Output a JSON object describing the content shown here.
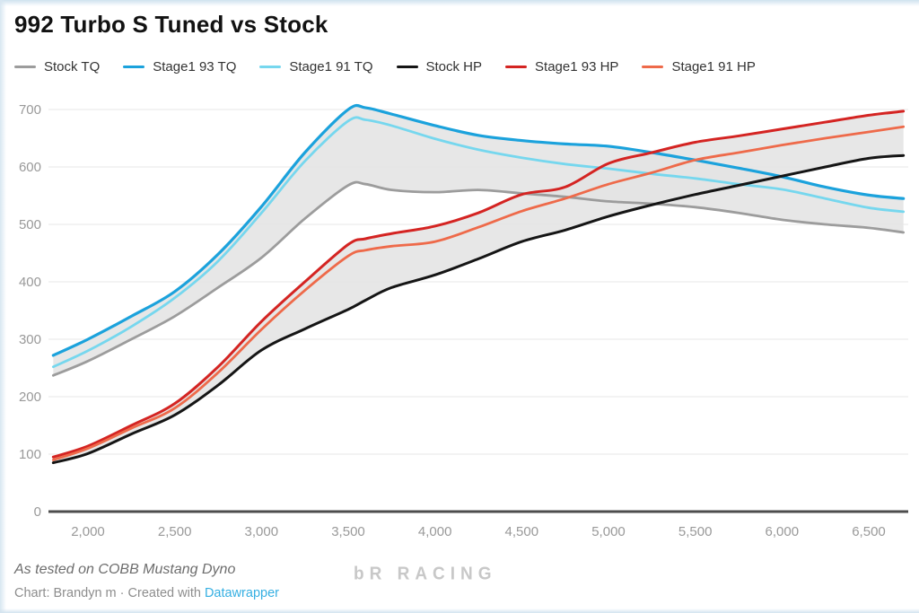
{
  "page": {
    "title": "992 Turbo S Tuned vs Stock"
  },
  "footer": {
    "note": "As tested on COBB Mustang Dyno",
    "byline_prefix": "Chart: Brandyn m · Created with ",
    "byline_link": "Datawrapper",
    "watermark": "bR RACING"
  },
  "chart_data": {
    "type": "line",
    "title": "992 Turbo S Tuned vs Stock",
    "xlabel": "",
    "ylabel": "",
    "xlim": [
      1800,
      6700
    ],
    "ylim": [
      0,
      700
    ],
    "grid": "horizontal",
    "legend_position": "top",
    "y_ticks": [
      0,
      100,
      200,
      300,
      400,
      500,
      600,
      700
    ],
    "x_ticks": [
      2000,
      2500,
      3000,
      3500,
      4000,
      4500,
      5000,
      5500,
      6000,
      6500
    ],
    "x_tick_labels": [
      "2,000",
      "2,500",
      "3,000",
      "3,500",
      "4,000",
      "4,500",
      "5,000",
      "5,500",
      "6,000",
      "6,500"
    ],
    "x": [
      1800,
      2000,
      2250,
      2500,
      2750,
      3000,
      3250,
      3500,
      3600,
      3750,
      4000,
      4250,
      4500,
      4750,
      5000,
      5250,
      5500,
      5750,
      6000,
      6250,
      6500,
      6700
    ],
    "series": [
      {
        "name": "Stock TQ",
        "color": "#9c9c9c",
        "width": 2.8,
        "values": [
          237,
          262,
          300,
          340,
          390,
          442,
          510,
          568,
          570,
          560,
          556,
          560,
          554,
          548,
          540,
          536,
          530,
          520,
          508,
          500,
          494,
          486
        ]
      },
      {
        "name": "Stage1 93 TQ",
        "color": "#1ba2dc",
        "width": 3.2,
        "values": [
          272,
          300,
          340,
          383,
          448,
          531,
          625,
          700,
          703,
          692,
          672,
          655,
          646,
          640,
          636,
          625,
          612,
          598,
          583,
          565,
          551,
          545
        ]
      },
      {
        "name": "Stage1 91 TQ",
        "color": "#76d7ee",
        "width": 2.8,
        "values": [
          252,
          280,
          322,
          372,
          436,
          520,
          610,
          680,
          682,
          672,
          649,
          630,
          616,
          605,
          597,
          588,
          580,
          570,
          561,
          545,
          529,
          522
        ]
      },
      {
        "name": "Stock HP",
        "color": "#151515",
        "width": 3.0,
        "values": [
          85,
          101,
          135,
          168,
          220,
          281,
          318,
          352,
          368,
          390,
          412,
          440,
          470,
          490,
          514,
          534,
          552,
          568,
          584,
          600,
          615,
          620
        ]
      },
      {
        "name": "Stage1 93 HP",
        "color": "#d42422",
        "width": 3.0,
        "values": [
          95,
          114,
          150,
          188,
          252,
          331,
          400,
          465,
          475,
          484,
          497,
          520,
          552,
          565,
          606,
          625,
          643,
          654,
          666,
          678,
          690,
          697
        ]
      },
      {
        "name": "Stage1 91 HP",
        "color": "#ee6a4a",
        "width": 2.8,
        "values": [
          90,
          110,
          145,
          180,
          242,
          317,
          385,
          445,
          455,
          462,
          470,
          495,
          523,
          545,
          570,
          590,
          612,
          625,
          638,
          650,
          661,
          670
        ]
      }
    ],
    "bands": [
      {
        "upper": "Stage1 93 TQ",
        "lower": "Stock TQ",
        "fill": "#e3e3e3",
        "opacity": 0.85
      },
      {
        "upper": "Stage1 93 HP",
        "lower": "Stock HP",
        "fill": "#e3e3e3",
        "opacity": 0.85
      }
    ],
    "colors": {
      "grid": "#efefef",
      "baseline": "#4d4d4d",
      "tick_text": "#999999",
      "link": "#35afe2"
    }
  }
}
